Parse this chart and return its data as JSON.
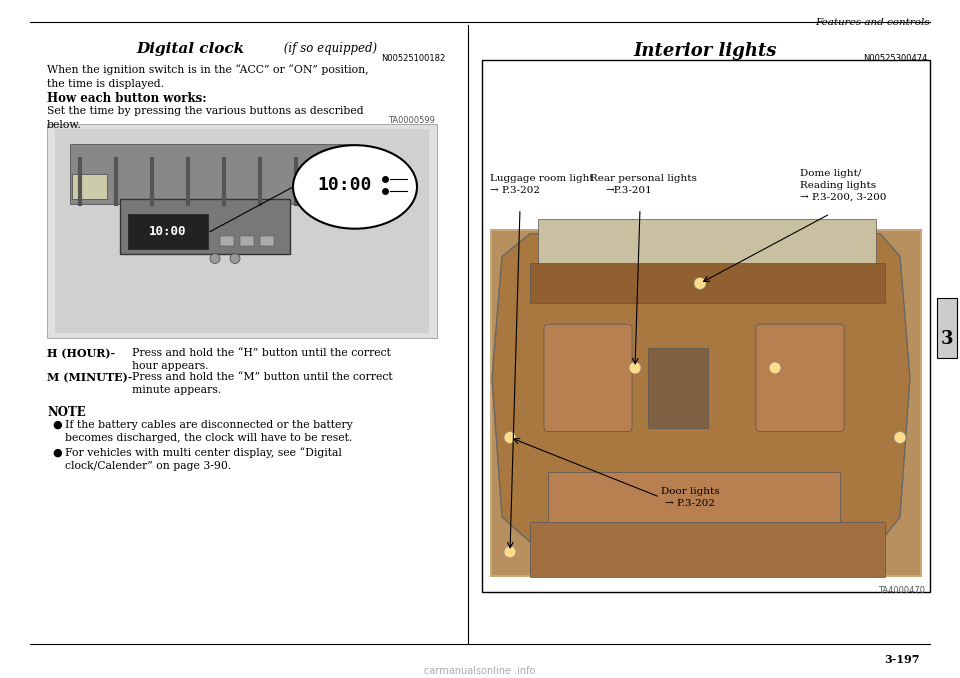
{
  "bg_color": "#ffffff",
  "page_width": 9.6,
  "page_height": 6.78,
  "header_text": "Features and controls",
  "page_number": "3-197",
  "chapter_number": "3",
  "left_title_italic": "Digital clock",
  "left_title_normal": " (if so equipped)",
  "left_code1": "N00525100182",
  "left_para1": "When the ignition switch is in the “ACC” or “ON” position,\nthe time is displayed.",
  "left_subtitle": "How each button works:",
  "left_para2": "Set the time by pressing the various buttons as described\nbelow.",
  "left_img_label": "TA0000599",
  "left_h_label": "H (HOUR)-",
  "left_h_text": "Press and hold the “H” button until the correct\nhour appears.",
  "left_m_label": "M (MINUTE)-",
  "left_m_text": "Press and hold the “M” button until the correct\nminute appears.",
  "note_title": "NOTE",
  "note_bullet1": "If the battery cables are disconnected or the battery\nbecomes discharged, the clock will have to be reset.",
  "note_bullet2": "For vehicles with multi center display, see “Digital\nclock/Calender” on page 3-90.",
  "right_title": "Interior lights",
  "right_code": "N00525300474",
  "right_img_label": "TA4000470",
  "label_luggage": "Luggage room light",
  "label_luggage_ref": "→ P.3-202",
  "label_rear": "Rear personal lights",
  "label_rear_ref": "→P.3-201",
  "label_dome_line1": "Dome light/",
  "label_dome_line2": "Reading lights",
  "label_dome_ref": "→ P.3-200, 3-200",
  "label_door": "Door lights",
  "label_door_ref": "→ P.3-202",
  "box_border_color": "#000000",
  "text_color": "#000000",
  "chapter_tab_color": "#cccccc"
}
